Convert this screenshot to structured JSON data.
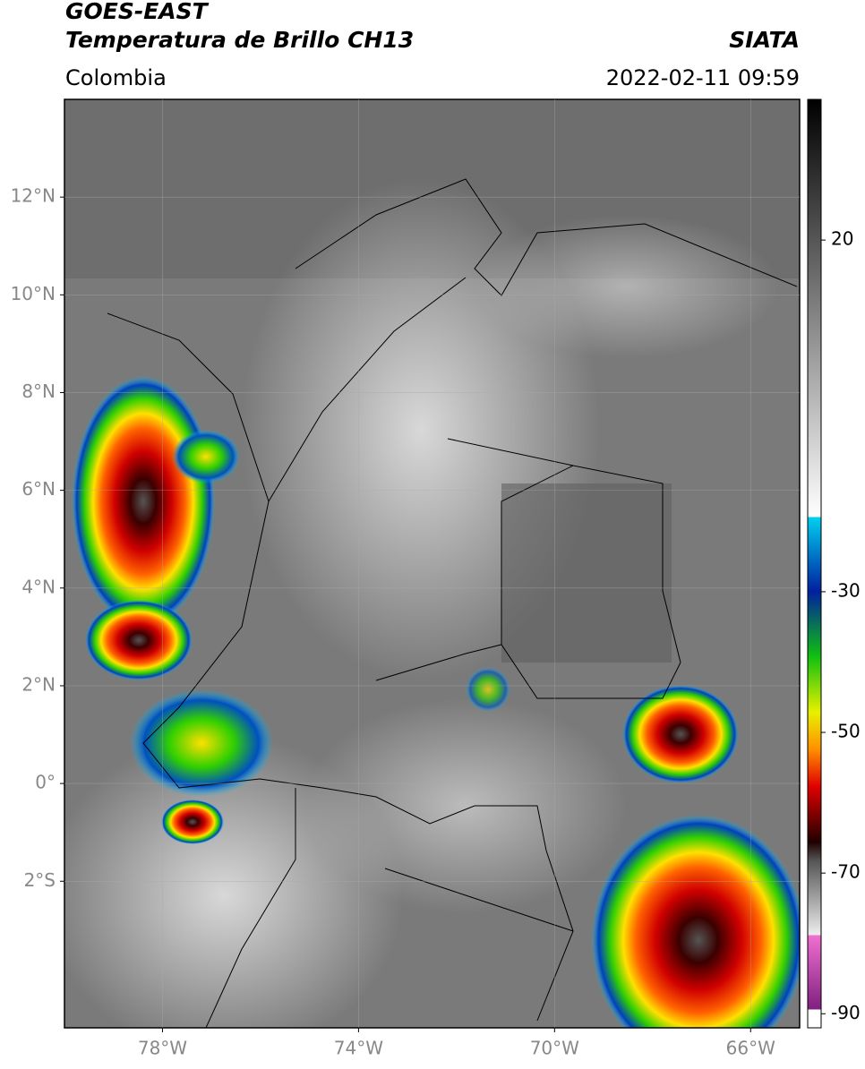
{
  "header": {
    "title": "GOES-EAST",
    "subtitle": "Temperatura de Brillo CH13",
    "region": "Colombia",
    "source": "SIATA",
    "datetime": "2022-02-11 09:59"
  },
  "map": {
    "lat_lim": [
      -5,
      14
    ],
    "lon_lim": [
      -80,
      -65
    ],
    "lat_ticks": [
      {
        "value": 12,
        "label": "12°N"
      },
      {
        "value": 10,
        "label": "10°N"
      },
      {
        "value": 8,
        "label": "8°N"
      },
      {
        "value": 6,
        "label": "6°N"
      },
      {
        "value": 4,
        "label": "4°N"
      },
      {
        "value": 2,
        "label": "2°N"
      },
      {
        "value": 0,
        "label": "0°"
      },
      {
        "value": -2,
        "label": "2°S"
      }
    ],
    "lon_ticks": [
      {
        "value": -78,
        "label": "78°W"
      },
      {
        "value": -74,
        "label": "74°W"
      },
      {
        "value": -70,
        "label": "70°W"
      },
      {
        "value": -66,
        "label": "66°W"
      }
    ],
    "grid": true
  },
  "colorbar": {
    "lim": [
      -92,
      40
    ],
    "ticks": [
      20,
      -30,
      -50,
      -70,
      -90
    ]
  }
}
